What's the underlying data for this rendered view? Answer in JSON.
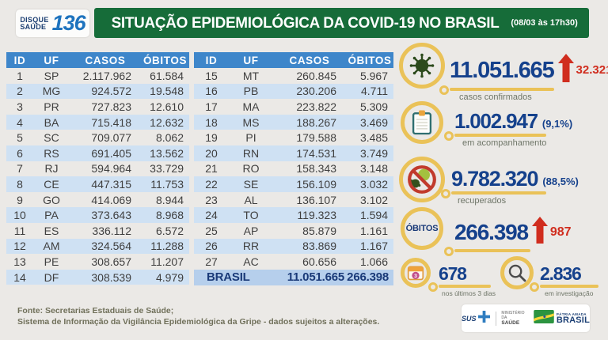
{
  "header": {
    "logo": {
      "line1": "DISQUE",
      "line2": "SAÚDE",
      "number": "136"
    },
    "title": "SITUAÇÃO EPIDEMIOLÓGICA DA COVID-19 NO BRASIL",
    "timestamp": "(08/03 às 17h30)"
  },
  "chart_data": {
    "type": "table",
    "title": "SITUAÇÃO EPIDEMIOLÓGICA DA COVID-19 NO BRASIL (08/03 às 17h30)",
    "columns": [
      "ID",
      "UF",
      "CASOS",
      "ÓBITOS"
    ],
    "left_rows": [
      [
        "1",
        "SP",
        "2.117.962",
        "61.584"
      ],
      [
        "2",
        "MG",
        "924.572",
        "19.548"
      ],
      [
        "3",
        "PR",
        "727.823",
        "12.610"
      ],
      [
        "4",
        "BA",
        "715.418",
        "12.632"
      ],
      [
        "5",
        "SC",
        "709.077",
        "8.062"
      ],
      [
        "6",
        "RS",
        "691.405",
        "13.562"
      ],
      [
        "7",
        "RJ",
        "594.964",
        "33.729"
      ],
      [
        "8",
        "CE",
        "447.315",
        "11.753"
      ],
      [
        "9",
        "GO",
        "414.069",
        "8.944"
      ],
      [
        "10",
        "PA",
        "373.643",
        "8.968"
      ],
      [
        "11",
        "ES",
        "336.112",
        "6.572"
      ],
      [
        "12",
        "AM",
        "324.564",
        "11.288"
      ],
      [
        "13",
        "PE",
        "308.657",
        "11.207"
      ],
      [
        "14",
        "DF",
        "308.539",
        "4.979"
      ]
    ],
    "right_rows": [
      [
        "15",
        "MT",
        "260.845",
        "5.967"
      ],
      [
        "16",
        "PB",
        "230.206",
        "4.711"
      ],
      [
        "17",
        "MA",
        "223.822",
        "5.309"
      ],
      [
        "18",
        "MS",
        "188.267",
        "3.469"
      ],
      [
        "19",
        "PI",
        "179.588",
        "3.485"
      ],
      [
        "20",
        "RN",
        "174.531",
        "3.749"
      ],
      [
        "21",
        "RO",
        "158.343",
        "3.148"
      ],
      [
        "22",
        "SE",
        "156.109",
        "3.032"
      ],
      [
        "23",
        "AL",
        "136.107",
        "3.102"
      ],
      [
        "24",
        "TO",
        "119.323",
        "1.594"
      ],
      [
        "25",
        "AP",
        "85.879",
        "1.161"
      ],
      [
        "26",
        "RR",
        "83.869",
        "1.167"
      ],
      [
        "27",
        "AC",
        "60.656",
        "1.066"
      ]
    ],
    "total": {
      "label": "BRASIL",
      "casos": "11.051.665",
      "obitos": "266.398"
    },
    "stats": {
      "confirmed": {
        "value": "11.051.665",
        "delta": "32.321",
        "label": "casos confirmados"
      },
      "monitoring": {
        "value": "1.002.947",
        "percent": "(9,1%)",
        "label": "em acompanhamento"
      },
      "recovered": {
        "value": "9.782.320",
        "percent": "(88,5%)",
        "label": "recuperados"
      },
      "deaths": {
        "badge": "ÓBITOS",
        "value": "266.398",
        "delta": "987"
      },
      "last3days": {
        "value": "678",
        "label": "nos últimos 3 dias"
      },
      "investigation": {
        "value": "2.836",
        "label": "em investigação"
      }
    }
  },
  "footer": {
    "source_line1": "Fonte: Secretarias Estaduais de Saúde;",
    "source_line2": "Sistema de Informação da Vigilância Epidemiológica da Gripe - dados sujeitos a alterações.",
    "logos": {
      "sus": "SUS",
      "ministry_line1": "MINISTÉRIO DA",
      "ministry_line2": "SAÚDE",
      "motto": "PÁTRIA AMADA",
      "brand": "BRASIL"
    }
  },
  "icons": {
    "virus-icon": "coronavirus glyph",
    "clipboard-icon": "clipboard glyph",
    "no-virus-icon": "virus with prohibition sign",
    "calendar-icon": "calendar with number 3",
    "magnifier-icon": "magnifying glass",
    "up-arrow-icon": "red increase arrow",
    "sus-cross-icon": "blue health cross",
    "brasil-flag-icon": "green-yellow flag"
  },
  "colors": {
    "background": "#ebe9e6",
    "banner_green": "#166c39",
    "table_header_blue": "#3e86ca",
    "row_stripe_blue": "#cfe1f3",
    "total_row_blue": "#b6cfec",
    "number_navy": "#15418c",
    "alert_red": "#d02d1e",
    "accent_yellow": "#eac258"
  }
}
